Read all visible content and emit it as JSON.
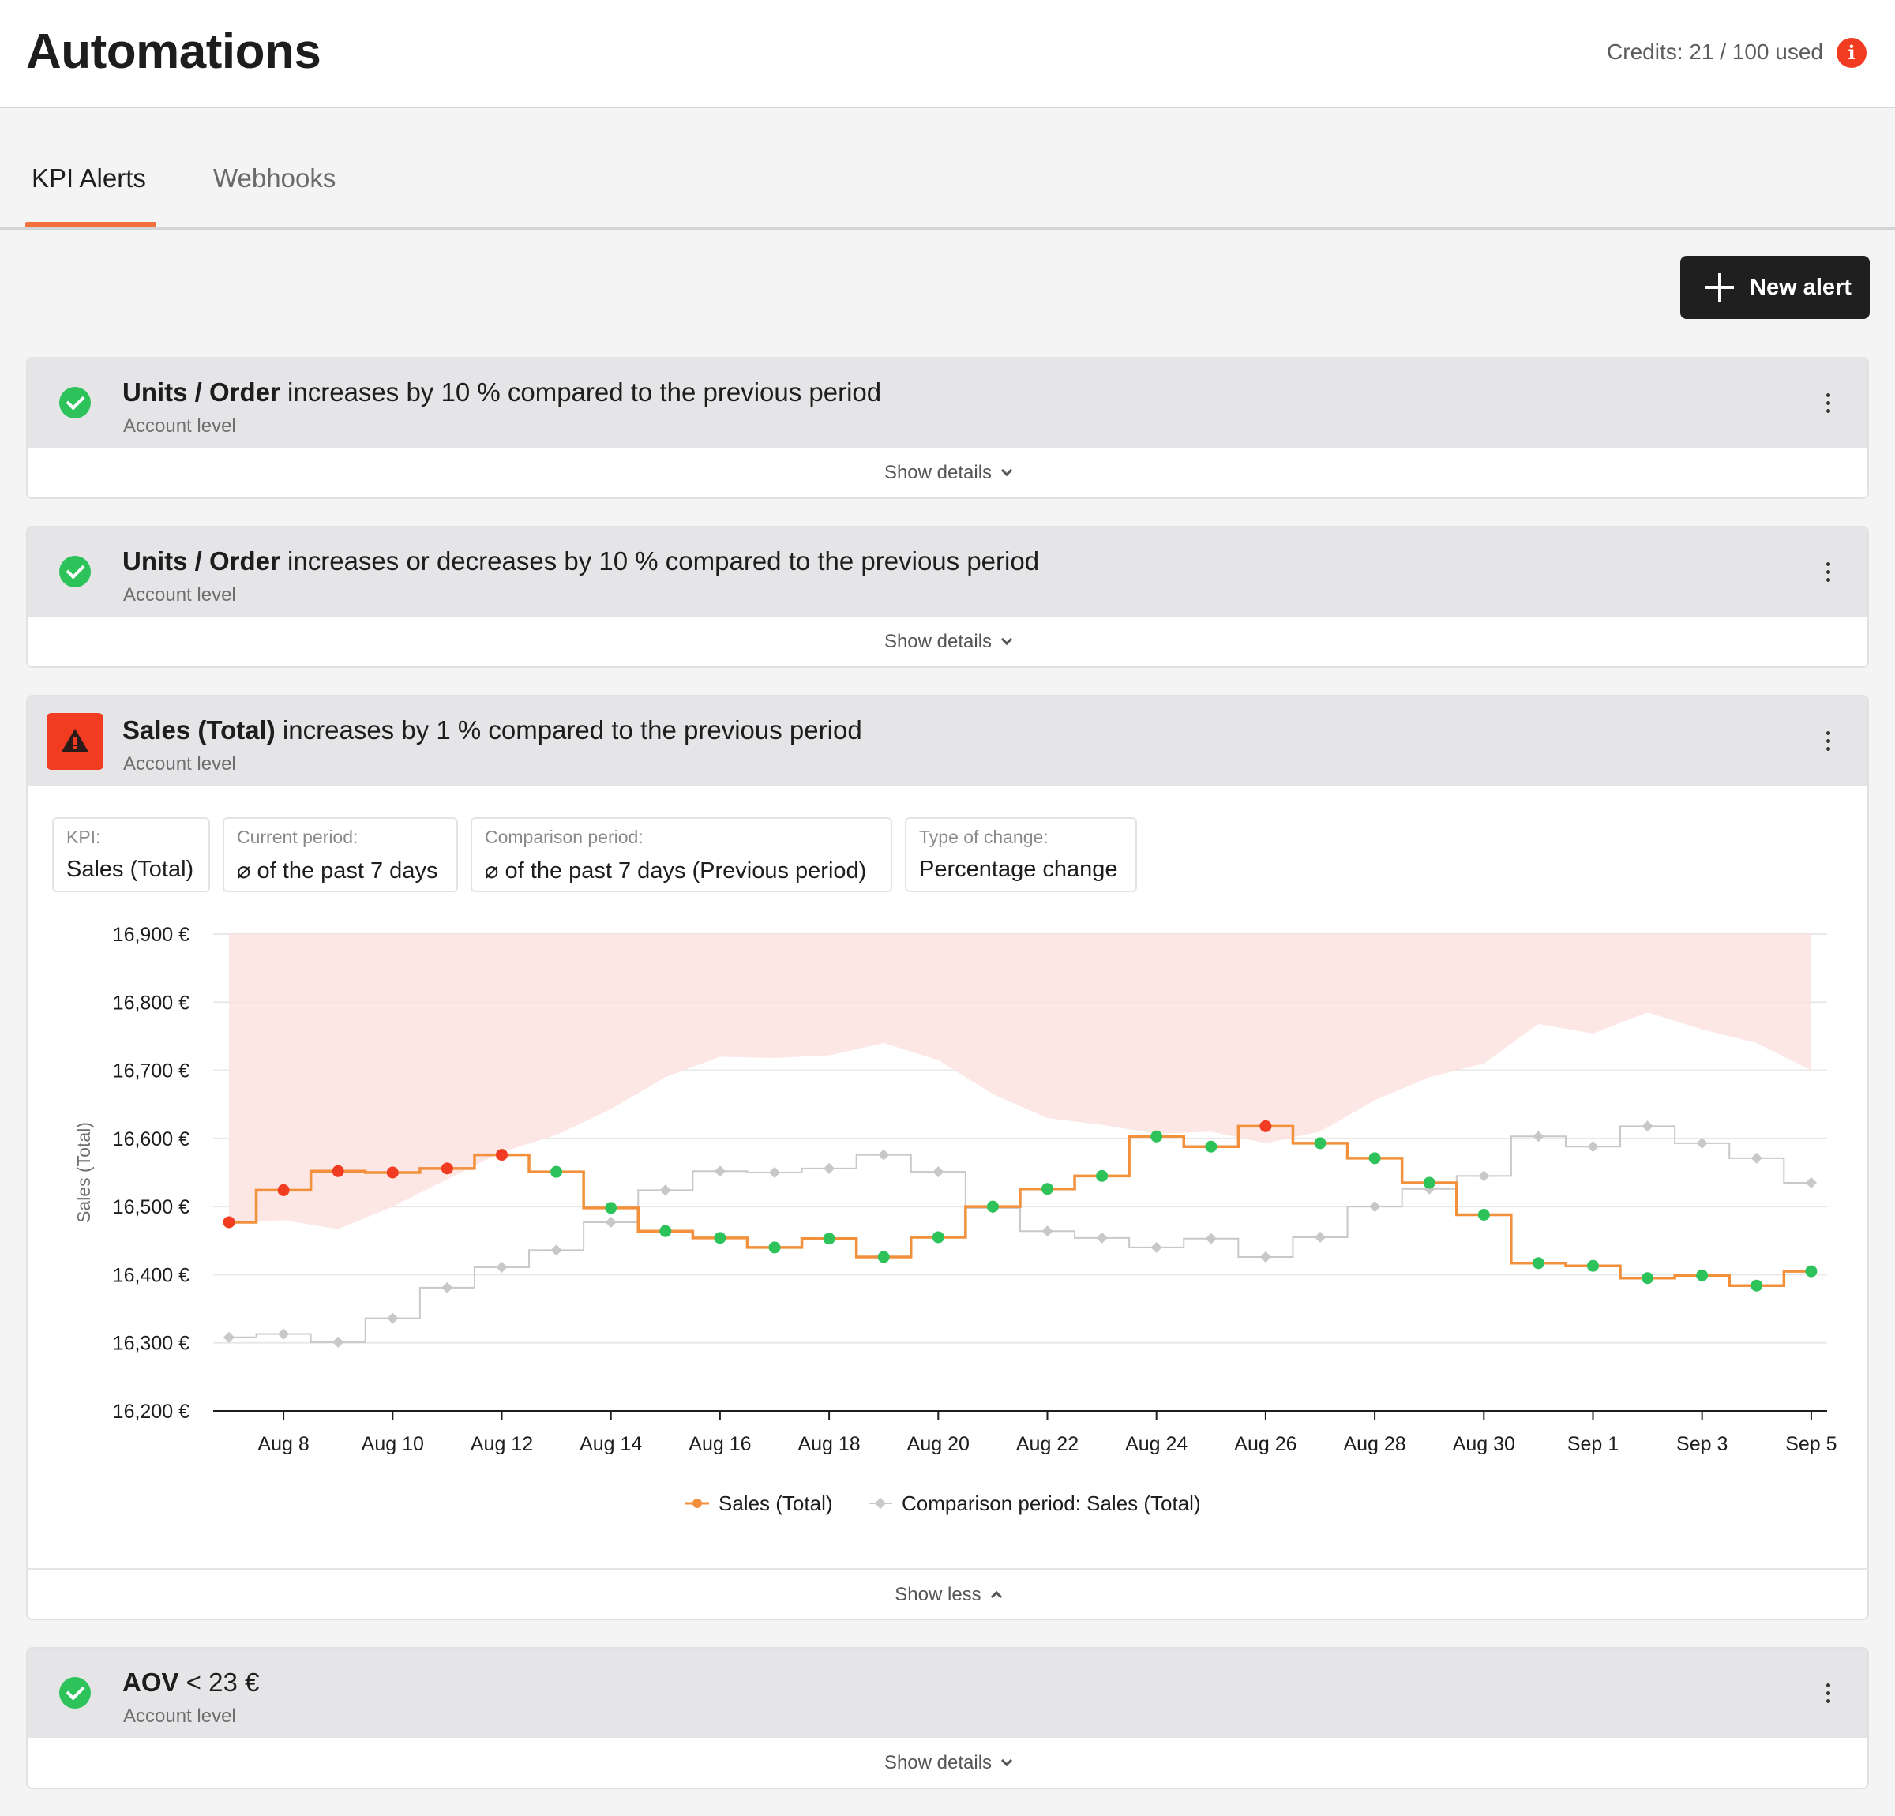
{
  "header": {
    "title": "Automations",
    "credits": "Credits: 21 / 100 used",
    "info_icon": "info-icon"
  },
  "tabs": [
    {
      "label": "KPI Alerts",
      "active": true
    },
    {
      "label": "Webhooks",
      "active": false
    }
  ],
  "toolbar": {
    "new_alert_label": "New alert",
    "new_alert_icon": "plus-icon"
  },
  "alerts": [
    {
      "kpi": "Units / Order",
      "condition": " increases by 10 % compared to the previous period",
      "level": "Account level",
      "status": "ok",
      "toggle": "Show details"
    },
    {
      "kpi": "Units / Order",
      "condition": " increases or decreases by 10 % compared to the previous period",
      "level": "Account level",
      "status": "ok",
      "toggle": "Show details"
    },
    {
      "kpi": "Sales (Total)",
      "condition": " increases by 1 % compared to the previous period",
      "level": "Account level",
      "status": "triggered",
      "toggle": "Show less",
      "details": [
        {
          "label": "KPI:",
          "value": "Sales (Total)"
        },
        {
          "label": "Current period:",
          "value": "⌀ of the past 7 days"
        },
        {
          "label": "Comparison period:",
          "value": "⌀ of the past 7 days (Previous period)"
        },
        {
          "label": "Type of change:",
          "value": "Percentage change"
        }
      ]
    },
    {
      "kpi": "AOV",
      "condition": " < 23 €",
      "level": "Account level",
      "status": "ok",
      "toggle": "Show details"
    }
  ],
  "colors": {
    "accent": "#f2703c",
    "danger": "#f23c22",
    "success": "#2ec25a",
    "comparison": "#c8c8c8",
    "threshold_band": "#fbe3e1"
  },
  "chart_data": {
    "type": "line",
    "step": true,
    "ylabel": "Sales (Total)",
    "ylim": [
      16200,
      16900
    ],
    "yticks": [
      16200,
      16300,
      16400,
      16500,
      16600,
      16700,
      16800,
      16900
    ],
    "ytick_labels": [
      "16,200 €",
      "16,300 €",
      "16,400 €",
      "16,500 €",
      "16,600 €",
      "16,700 €",
      "16,800 €",
      "16,900 €"
    ],
    "xtick_labels": [
      "Aug 8",
      "Aug 10",
      "Aug 12",
      "Aug 14",
      "Aug 16",
      "Aug 18",
      "Aug 20",
      "Aug 22",
      "Aug 24",
      "Aug 26",
      "Aug 28",
      "Aug 30",
      "Sep 1",
      "Sep 3",
      "Sep 5"
    ],
    "x": [
      "Aug 7",
      "Aug 8",
      "Aug 9",
      "Aug 10",
      "Aug 11",
      "Aug 12",
      "Aug 13",
      "Aug 14",
      "Aug 15",
      "Aug 16",
      "Aug 17",
      "Aug 18",
      "Aug 19",
      "Aug 20",
      "Aug 21",
      "Aug 22",
      "Aug 23",
      "Aug 24",
      "Aug 25",
      "Aug 26",
      "Aug 27",
      "Aug 28",
      "Aug 29",
      "Aug 30",
      "Aug 31",
      "Sep 1",
      "Sep 2",
      "Sep 3",
      "Sep 4",
      "Sep 5"
    ],
    "series": [
      {
        "name": "Sales (Total)",
        "color": "#f2903c",
        "values": [
          16477,
          16524,
          16552,
          16550,
          16556,
          16576,
          16551,
          16498,
          16464,
          16454,
          16440,
          16453,
          16426,
          16455,
          16500,
          16526,
          16545,
          16603,
          16588,
          16618,
          16593,
          16571,
          16535,
          16488,
          16417,
          16413,
          16395,
          16399,
          16384,
          16405
        ],
        "alert": [
          true,
          true,
          true,
          true,
          true,
          true,
          false,
          false,
          false,
          false,
          false,
          false,
          false,
          false,
          false,
          false,
          false,
          false,
          false,
          true,
          false,
          false,
          false,
          false,
          false,
          false,
          false,
          false,
          false,
          false
        ]
      },
      {
        "name": "Comparison period: Sales (Total)",
        "color": "#c8c8c8",
        "values": [
          16308,
          16313,
          16301,
          16336,
          16381,
          16411,
          16436,
          16477,
          16524,
          16552,
          16550,
          16556,
          16576,
          16551,
          16498,
          16464,
          16454,
          16440,
          16453,
          16426,
          16455,
          16500,
          16526,
          16545,
          16603,
          16588,
          16618,
          16593,
          16571,
          16535
        ]
      }
    ],
    "threshold_band": {
      "upper": 16900,
      "lower": [
        16477,
        16480,
        16467,
        16500,
        16540,
        16580,
        16605,
        16643,
        16690,
        16720,
        16718,
        16722,
        16740,
        16715,
        16665,
        16630,
        16620,
        16607,
        16610,
        16593,
        16610,
        16656,
        16690,
        16710,
        16768,
        16754,
        16785,
        16760,
        16740,
        16700
      ]
    },
    "legend": [
      "Sales (Total)",
      "Comparison period: Sales (Total)"
    ],
    "legend_position": "bottom",
    "grid": true
  }
}
